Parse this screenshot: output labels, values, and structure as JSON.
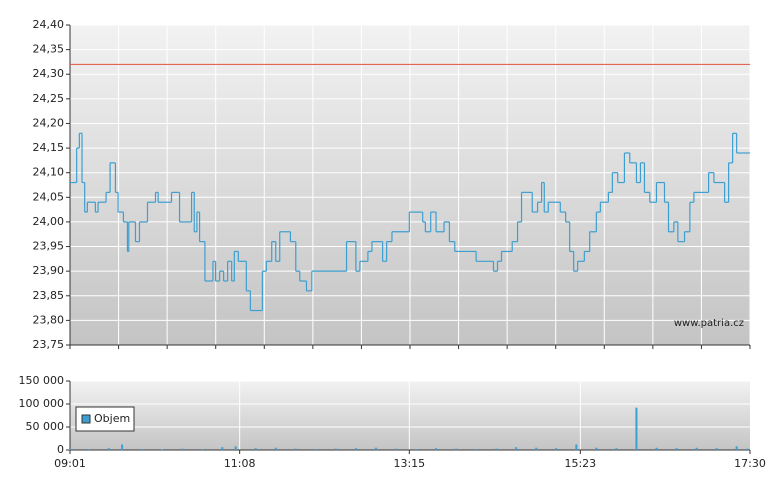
{
  "chart_data": [
    {
      "type": "line",
      "xlim": [
        "09:01",
        "17:30"
      ],
      "ylim": [
        23.75,
        24.4
      ],
      "yticks": [
        {
          "value": 23.75,
          "label": "23,75"
        },
        {
          "value": 23.8,
          "label": "23,80"
        },
        {
          "value": 23.85,
          "label": "23,85"
        },
        {
          "value": 23.9,
          "label": "23,90"
        },
        {
          "value": 23.95,
          "label": "23,95"
        },
        {
          "value": 24.0,
          "label": "24,00"
        },
        {
          "value": 24.05,
          "label": "24,05"
        },
        {
          "value": 24.1,
          "label": "24,10"
        },
        {
          "value": 24.15,
          "label": "24,15"
        },
        {
          "value": 24.2,
          "label": "24,20"
        },
        {
          "value": 24.25,
          "label": "24,25"
        },
        {
          "value": 24.3,
          "label": "24,30"
        },
        {
          "value": 24.35,
          "label": "24,35"
        },
        {
          "value": 24.4,
          "label": "24,40"
        }
      ],
      "grid": true,
      "color": "#3d9fd1",
      "reference_line": {
        "value": 24.32,
        "color": "#e0533f"
      },
      "watermark": "www.patria.cz",
      "x": [
        "09:01",
        "09:06",
        "09:08",
        "09:10",
        "09:12",
        "09:14",
        "09:20",
        "09:22",
        "09:28",
        "09:31",
        "09:35",
        "09:37",
        "09:41",
        "09:44",
        "09:45",
        "09:50",
        "09:53",
        "09:59",
        "10:05",
        "10:07",
        "10:17",
        "10:23",
        "10:32",
        "10:34",
        "10:36",
        "10:38",
        "10:42",
        "10:48",
        "10:50",
        "10:53",
        "10:56",
        "10:59",
        "11:02",
        "11:04",
        "11:07",
        "11:13",
        "11:16",
        "11:25",
        "11:28",
        "11:32",
        "11:35",
        "11:38",
        "11:46",
        "11:50",
        "11:53",
        "11:58",
        "12:02",
        "12:28",
        "12:35",
        "12:38",
        "12:44",
        "12:47",
        "12:55",
        "12:58",
        "13:02",
        "13:15",
        "13:25",
        "13:27",
        "13:31",
        "13:35",
        "13:41",
        "13:45",
        "13:49",
        "14:05",
        "14:18",
        "14:21",
        "14:24",
        "14:32",
        "14:36",
        "14:39",
        "14:47",
        "14:51",
        "14:54",
        "14:56",
        "14:59",
        "15:08",
        "15:12",
        "15:15",
        "15:18",
        "15:21",
        "15:26",
        "15:30",
        "15:35",
        "15:38",
        "15:44",
        "15:47",
        "15:51",
        "15:56",
        "16:00",
        "16:05",
        "16:08",
        "16:11",
        "16:15",
        "16:20",
        "16:26",
        "16:29",
        "16:33",
        "16:36",
        "16:41",
        "16:45",
        "16:48",
        "16:59",
        "17:03",
        "17:11",
        "17:14",
        "17:17",
        "17:20"
      ],
      "values": [
        24.08,
        24.15,
        24.18,
        24.08,
        24.02,
        24.04,
        24.02,
        24.04,
        24.06,
        24.12,
        24.06,
        24.02,
        24.0,
        23.94,
        24.0,
        23.96,
        24.0,
        24.04,
        24.06,
        24.04,
        24.06,
        24.0,
        24.06,
        23.98,
        24.02,
        23.96,
        23.88,
        23.92,
        23.88,
        23.9,
        23.88,
        23.92,
        23.88,
        23.94,
        23.92,
        23.86,
        23.82,
        23.9,
        23.92,
        23.96,
        23.92,
        23.98,
        23.96,
        23.9,
        23.88,
        23.86,
        23.9,
        23.96,
        23.9,
        23.92,
        23.94,
        23.96,
        23.92,
        23.96,
        23.98,
        24.02,
        24.0,
        23.98,
        24.02,
        23.98,
        24.0,
        23.96,
        23.94,
        23.92,
        23.9,
        23.92,
        23.94,
        23.96,
        24.0,
        24.06,
        24.02,
        24.04,
        24.08,
        24.02,
        24.04,
        24.02,
        24.0,
        23.94,
        23.9,
        23.92,
        23.94,
        23.98,
        24.02,
        24.04,
        24.06,
        24.1,
        24.08,
        24.14,
        24.12,
        24.08,
        24.12,
        24.06,
        24.04,
        24.08,
        24.04,
        23.98,
        24.0,
        23.96,
        23.98,
        24.04,
        24.06,
        24.1,
        24.08,
        24.04,
        24.12,
        24.18,
        24.14
      ]
    },
    {
      "type": "bar",
      "xlim": [
        "09:01",
        "17:30"
      ],
      "xticks": [
        "09:01",
        "11:08",
        "13:15",
        "15:23",
        "17:30"
      ],
      "ylim": [
        0,
        150000
      ],
      "yticks": [
        0,
        {
          "value": 50000,
          "label": "50 000"
        },
        {
          "value": 100000,
          "label": "100 000"
        },
        {
          "value": 150000,
          "label": "150 000"
        }
      ],
      "grid": true,
      "legend": "upper left",
      "x": [
        "09:01",
        "09:15",
        "09:30",
        "09:40",
        "09:55",
        "10:10",
        "10:25",
        "10:40",
        "10:55",
        "11:05",
        "11:20",
        "11:35",
        "11:50",
        "12:05",
        "12:20",
        "12:35",
        "12:50",
        "13:05",
        "13:20",
        "13:35",
        "13:50",
        "14:05",
        "14:20",
        "14:35",
        "14:50",
        "15:05",
        "15:20",
        "15:35",
        "15:50",
        "16:05",
        "16:20",
        "16:35",
        "16:50",
        "17:05",
        "17:20",
        "17:28"
      ],
      "series": [
        {
          "name": "Objem",
          "color": "#3d9fd1",
          "values": [
            3000,
            2000,
            4000,
            12000,
            2000,
            1500,
            3000,
            2000,
            6000,
            8000,
            4000,
            5000,
            3000,
            2000,
            3000,
            4000,
            5000,
            3000,
            2000,
            4000,
            3000,
            2000,
            3000,
            6000,
            5000,
            4000,
            12000,
            5000,
            4000,
            92000,
            5000,
            4000,
            5000,
            4000,
            8000,
            3000
          ]
        }
      ]
    }
  ]
}
